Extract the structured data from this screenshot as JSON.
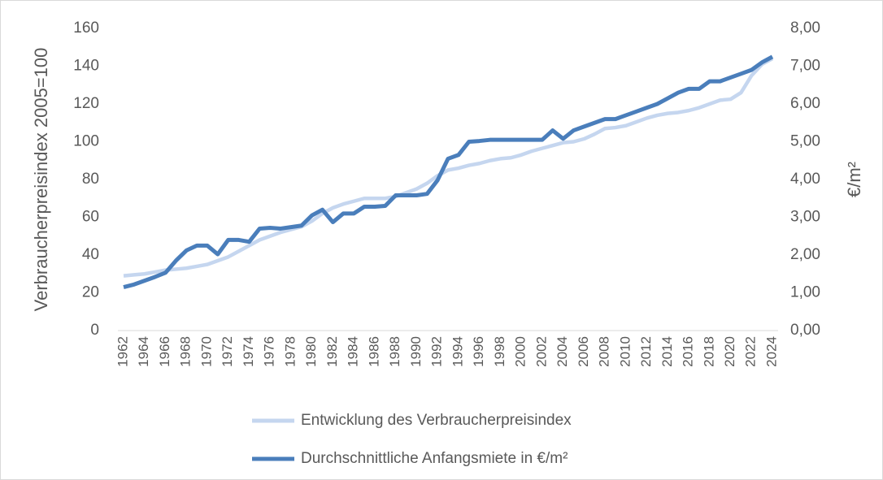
{
  "chart_data": {
    "type": "line",
    "x": [
      1962,
      1963,
      1964,
      1965,
      1966,
      1967,
      1968,
      1969,
      1970,
      1971,
      1972,
      1973,
      1974,
      1975,
      1976,
      1977,
      1978,
      1979,
      1980,
      1981,
      1982,
      1983,
      1984,
      1985,
      1986,
      1987,
      1988,
      1989,
      1990,
      1991,
      1992,
      1993,
      1994,
      1995,
      1996,
      1997,
      1998,
      1999,
      2000,
      2001,
      2002,
      2003,
      2004,
      2005,
      2006,
      2007,
      2008,
      2009,
      2010,
      2011,
      2012,
      2013,
      2014,
      2015,
      2016,
      2017,
      2018,
      2019,
      2020,
      2021,
      2022,
      2023,
      2024
    ],
    "xlim": [
      1962,
      2024
    ],
    "xticks": [
      1962,
      1964,
      1966,
      1968,
      1970,
      1972,
      1974,
      1976,
      1978,
      1980,
      1982,
      1984,
      1986,
      1988,
      1990,
      1992,
      1994,
      1996,
      1998,
      2000,
      2002,
      2004,
      2006,
      2008,
      2010,
      2012,
      2014,
      2016,
      2018,
      2020,
      2022,
      2024
    ],
    "ylabel": "Verbraucherpreisindex 2005=100",
    "y2label": "€/m²",
    "ylim": [
      0,
      160
    ],
    "yticks": [
      0,
      20,
      40,
      60,
      80,
      100,
      120,
      140,
      160
    ],
    "y2lim": [
      0,
      8
    ],
    "y2ticks": [
      {
        "value": 0,
        "label": "0,00"
      },
      {
        "value": 1,
        "label": "1,00"
      },
      {
        "value": 2,
        "label": "2,00"
      },
      {
        "value": 3,
        "label": "3,00"
      },
      {
        "value": 4,
        "label": "4,00"
      },
      {
        "value": 5,
        "label": "5,00"
      },
      {
        "value": 6,
        "label": "6,00"
      },
      {
        "value": 7,
        "label": "7,00"
      },
      {
        "value": 8,
        "label": "8,00"
      }
    ],
    "series": [
      {
        "name": "Entwicklung des Verbraucherpreisindex",
        "color": "#c5d6ef",
        "axis": "y",
        "values": [
          29,
          29.5,
          30,
          31,
          32,
          32.5,
          33,
          34,
          35,
          37,
          39,
          42,
          45,
          48,
          50,
          52,
          53.5,
          55,
          58,
          62,
          65,
          67,
          68.5,
          70,
          70,
          70,
          71,
          73,
          75,
          78,
          82,
          85,
          86,
          87.5,
          88.5,
          90,
          91,
          91.5,
          93,
          95,
          96.5,
          98,
          99.5,
          100,
          101.5,
          104,
          107,
          107.5,
          108.5,
          110.5,
          112.5,
          114,
          115,
          115.5,
          116.5,
          118,
          120,
          122,
          122.5,
          126,
          135,
          141,
          144
        ]
      },
      {
        "name": "Durchschnittliche Anfangsmiete in €/m²",
        "color": "#4a7ebb",
        "axis": "y2",
        "values": [
          1.15,
          1.22,
          1.32,
          1.42,
          1.53,
          1.85,
          2.12,
          2.25,
          2.25,
          2.02,
          2.4,
          2.4,
          2.35,
          2.7,
          2.72,
          2.7,
          2.74,
          2.78,
          3.05,
          3.2,
          2.87,
          3.1,
          3.1,
          3.28,
          3.28,
          3.3,
          3.58,
          3.58,
          3.58,
          3.62,
          3.98,
          4.55,
          4.65,
          5.0,
          5.02,
          5.05,
          5.05,
          5.05,
          5.05,
          5.05,
          5.05,
          5.3,
          5.08,
          5.3,
          5.4,
          5.5,
          5.6,
          5.6,
          5.7,
          5.8,
          5.9,
          6.0,
          6.15,
          6.3,
          6.4,
          6.4,
          6.6,
          6.6,
          6.7,
          6.8,
          6.9,
          7.1,
          7.25
        ]
      }
    ]
  }
}
